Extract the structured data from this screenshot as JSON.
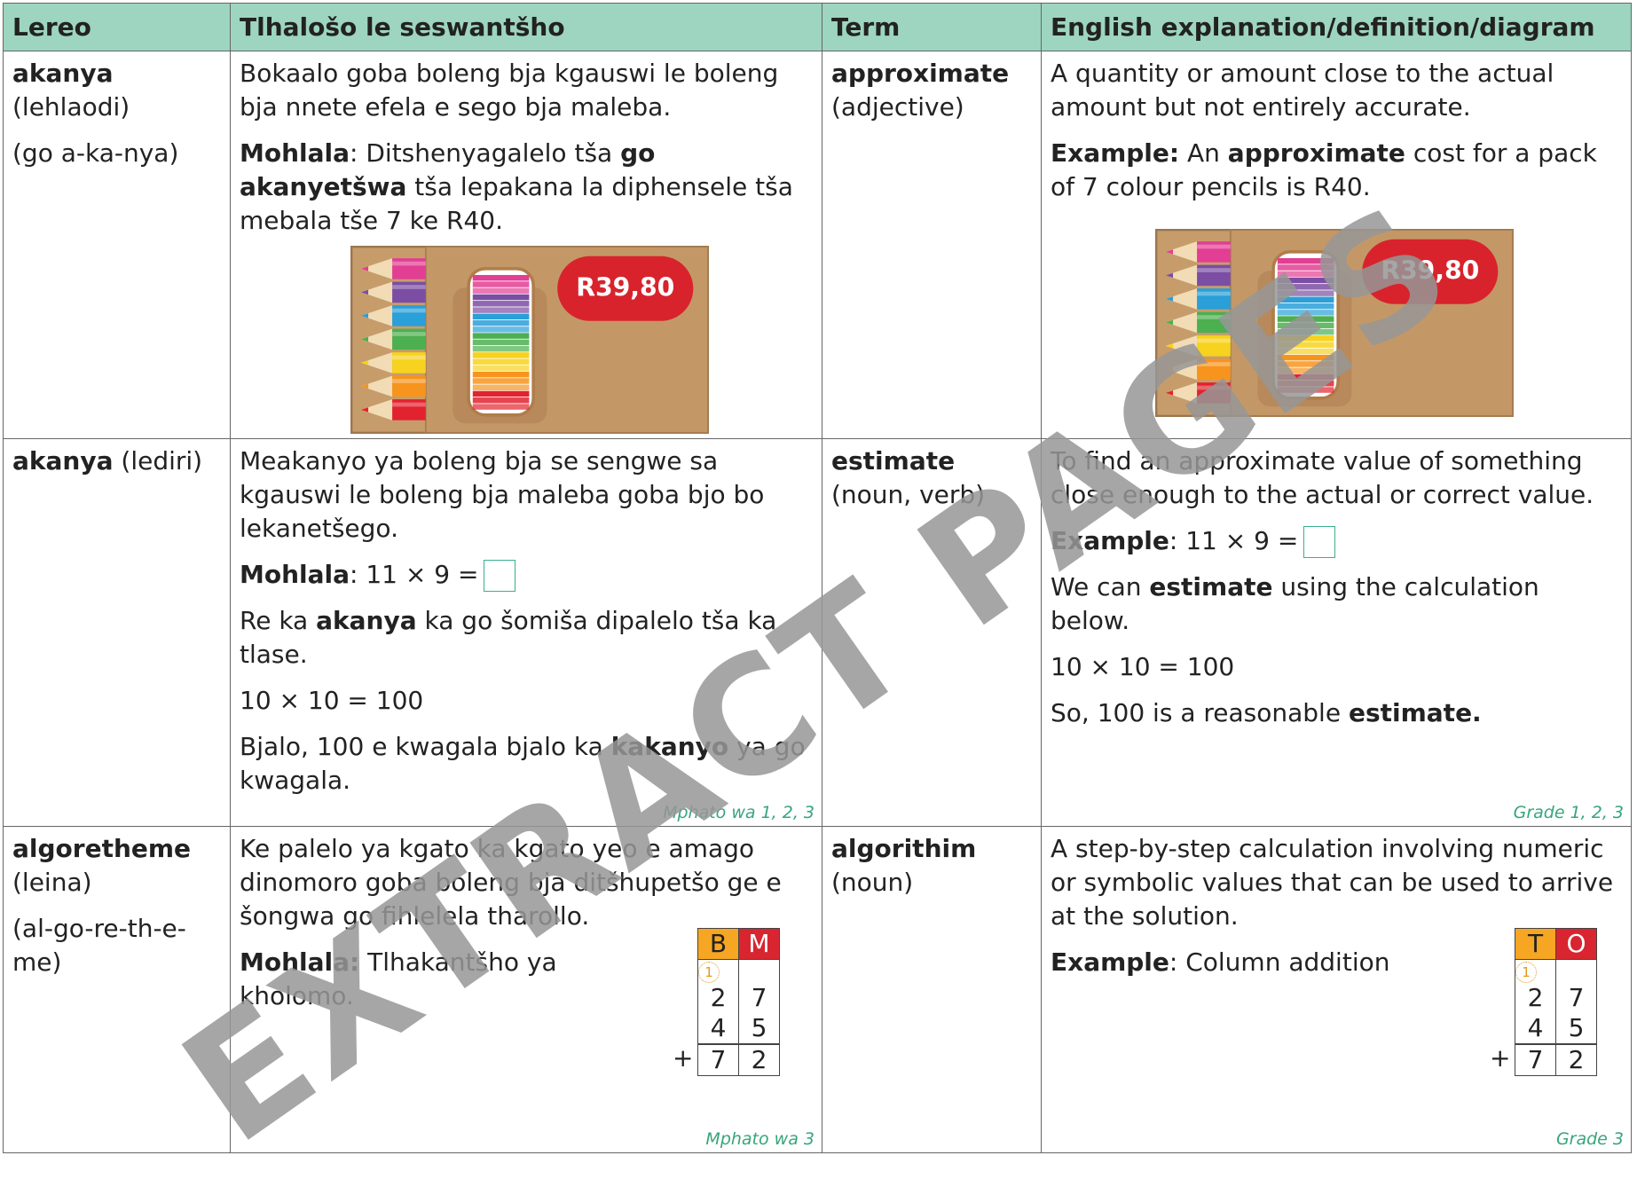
{
  "table": {
    "headers": [
      "Lereo",
      "Tlhalošo le seswantšho",
      "Term",
      "English explanation/definition/diagram"
    ],
    "rows": [
      {
        "lereo": [
          [
            "akanya",
            "(lehlaodi)"
          ],
          [
            "(go a-ka-nya)"
          ]
        ],
        "tlhaloso": [
          [
            "Bokaalo goba boleng bja kgauswi le boleng bja nnete efela e sego bja maleba."
          ],
          [
            "Mohlala",
            ": Ditshenyagalelo tša ",
            "go akanyetšwa",
            " tša lepakana la diphensele tša mebala tše 7 ke R40."
          ]
        ],
        "tlhaloso_price": "R39,80",
        "term": [
          [
            "approximate",
            "(adjective)"
          ]
        ],
        "english": [
          [
            "A quantity or amount close to the actual amount but not entirely accurate."
          ],
          [
            "Example:",
            " An ",
            "approximate",
            " cost for a pack of 7 colour pencils is R40."
          ]
        ],
        "english_price": "R39,80"
      },
      {
        "lereo": [
          [
            "akanya",
            " (lediri)"
          ]
        ],
        "tlhaloso": [
          [
            "Meakanyo ya boleng bja se sengwe sa kgauswi le boleng bja maleba goba bjo bo lekanetšego."
          ],
          [
            "Mohlala",
            ": 11 × 9 ="
          ],
          [
            "Re ka ",
            "akanya",
            " ka go šomiša dipalelo tša ka tlase."
          ],
          [
            "10 × 10 = 100"
          ],
          [
            "Bjalo, 100 e kwagala bjalo ka ",
            "kakanyo",
            " ya go kwagala."
          ]
        ],
        "tlhaloso_grade": "Mphato wa 1, 2, 3",
        "term": [
          [
            "estimate",
            "(noun, verb)"
          ]
        ],
        "english": [
          [
            "To find an approximate value of something close enough to the actual or correct value."
          ],
          [
            "Example",
            ": 11 × 9 ="
          ],
          [
            "We can ",
            "estimate",
            " using the calculation below."
          ],
          [
            "10 × 10 = 100"
          ],
          [
            "So, 100 is a reasonable ",
            "estimate."
          ]
        ],
        "english_grade": "Grade 1, 2, 3"
      },
      {
        "lereo": [
          [
            "algoretheme",
            "(leina)"
          ],
          [
            "(al-go-re-th-e-me)"
          ]
        ],
        "tlhaloso": [
          [
            "Ke palelo ya kgato ka kgato yeo e amago dinomoro goba boleng bja ditšhupetšo ge e šongwa go fihlelela tharollo."
          ],
          [
            "Mohlala:",
            " Tlhakantšho ya kholomo."
          ]
        ],
        "tlhaloso_sum": {
          "headers": [
            "B",
            "M"
          ],
          "carry": "1",
          "rows": [
            [
              "2",
              "7"
            ],
            [
              "4",
              "5"
            ]
          ],
          "sign": "+",
          "result": [
            "7",
            "2"
          ]
        },
        "tlhaloso_grade": "Mphato wa 3",
        "term": [
          [
            "algorithim",
            "(noun)"
          ]
        ],
        "english": [
          [
            "A step-by-step calculation involving numeric or symbolic values that can be used to arrive at the solution."
          ],
          [
            "Example",
            ": Column addition"
          ]
        ],
        "english_sum": {
          "headers": [
            "T",
            "O"
          ],
          "carry": "1",
          "rows": [
            [
              "2",
              "7"
            ],
            [
              "4",
              "5"
            ]
          ],
          "sign": "+",
          "result": [
            "7",
            "2"
          ]
        },
        "english_grade": "Grade 3"
      }
    ]
  },
  "watermark": "EXTRACT PAGES"
}
